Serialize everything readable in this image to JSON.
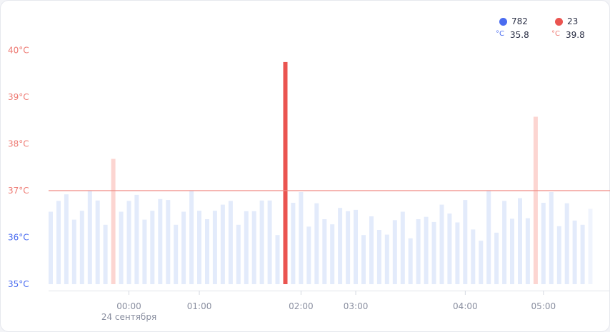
{
  "colors": {
    "normal_dot": "#4a6cf0",
    "high_dot": "#ea5450",
    "normal_bar": "#e3ebfb",
    "high_bar_light": "#fcd5d1",
    "high_bar_strong": "#ea5450",
    "threshold_line": "#f08a84",
    "axis_label_high": "#ee7a73",
    "axis_label_low": "#4a6cf0",
    "time_label": "#8a8fa0"
  },
  "legend": {
    "normal": {
      "count": "782",
      "unit": "°C",
      "value": "35.8"
    },
    "high": {
      "count": "23",
      "unit": "°C",
      "value": "39.8"
    }
  },
  "chart_data": {
    "type": "bar",
    "y_unit": "°C",
    "ylim": [
      35,
      40
    ],
    "y_ticks": [
      "35°C",
      "36°C",
      "37°C",
      "38°C",
      "39°C",
      "40°C"
    ],
    "threshold": 37,
    "x_ticks": [
      {
        "label": "00:00",
        "sublabel": "24 сентября",
        "index": 10
      },
      {
        "label": "01:00",
        "index": 19
      },
      {
        "label": "02:00",
        "index": 32
      },
      {
        "label": "03:00",
        "index": 39
      },
      {
        "label": "04:00",
        "index": 53
      },
      {
        "label": "05:00",
        "index": 63
      }
    ],
    "values": [
      36.55,
      36.78,
      36.92,
      36.38,
      36.57,
      37.0,
      36.79,
      36.27,
      37.68,
      36.55,
      36.78,
      36.91,
      36.38,
      36.57,
      36.82,
      36.8,
      36.27,
      36.55,
      37.0,
      36.57,
      36.39,
      36.57,
      36.7,
      36.78,
      36.27,
      36.56,
      36.56,
      36.79,
      36.79,
      36.05,
      39.75,
      36.74,
      36.97,
      36.23,
      36.73,
      36.39,
      36.28,
      36.63,
      36.56,
      36.59,
      36.05,
      36.45,
      36.16,
      36.06,
      36.37,
      36.55,
      35.98,
      36.39,
      36.44,
      36.33,
      36.7,
      36.51,
      36.32,
      36.8,
      36.17,
      35.93,
      37.0,
      36.1,
      36.78,
      36.4,
      36.84,
      36.41,
      38.58,
      36.74,
      36.97,
      36.24,
      36.73,
      36.36,
      36.27,
      36.61
    ]
  }
}
